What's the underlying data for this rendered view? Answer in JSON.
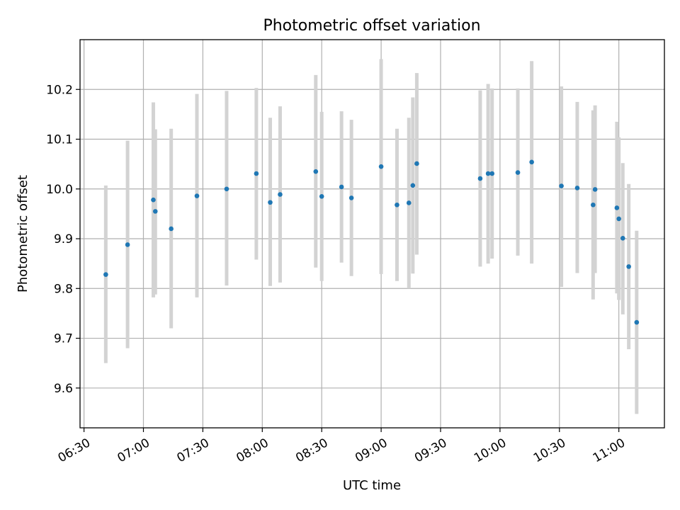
{
  "chart_data": {
    "type": "scatter",
    "title": "Photometric offset variation",
    "xlabel": "UTC time",
    "ylabel": "Photometric offset",
    "x_axis_kind": "time",
    "xlim": [
      "06:28",
      "11:23"
    ],
    "ylim": [
      9.52,
      10.3
    ],
    "grid": true,
    "x_ticks": [
      "06:30",
      "07:00",
      "07:30",
      "08:00",
      "08:30",
      "09:00",
      "09:30",
      "10:00",
      "10:30",
      "11:00"
    ],
    "y_ticks": [
      "9.6",
      "9.7",
      "9.8",
      "9.9",
      "10.0",
      "10.1",
      "10.2"
    ],
    "marker_color": "#1f77b4",
    "errorbar_color": "#d3d3d3",
    "points": [
      {
        "x": "06:41",
        "y": 9.828,
        "lo": 9.65,
        "hi": 10.007
      },
      {
        "x": "06:52",
        "y": 9.888,
        "lo": 9.68,
        "hi": 10.097
      },
      {
        "x": "07:05",
        "y": 9.978,
        "lo": 9.782,
        "hi": 10.174
      },
      {
        "x": "07:06",
        "y": 9.955,
        "lo": 9.788,
        "hi": 10.12
      },
      {
        "x": "07:14",
        "y": 9.92,
        "lo": 9.72,
        "hi": 10.121
      },
      {
        "x": "07:27",
        "y": 9.986,
        "lo": 9.782,
        "hi": 10.191
      },
      {
        "x": "07:42",
        "y": 10.0,
        "lo": 9.806,
        "hi": 10.197
      },
      {
        "x": "07:57",
        "y": 10.031,
        "lo": 9.858,
        "hi": 10.203
      },
      {
        "x": "08:04",
        "y": 9.973,
        "lo": 9.805,
        "hi": 10.143
      },
      {
        "x": "08:09",
        "y": 9.989,
        "lo": 9.812,
        "hi": 10.166
      },
      {
        "x": "08:27",
        "y": 10.035,
        "lo": 9.842,
        "hi": 10.229
      },
      {
        "x": "08:30",
        "y": 9.985,
        "lo": 9.815,
        "hi": 10.155
      },
      {
        "x": "08:40",
        "y": 10.004,
        "lo": 9.852,
        "hi": 10.156
      },
      {
        "x": "08:45",
        "y": 9.982,
        "lo": 9.825,
        "hi": 10.139
      },
      {
        "x": "09:00",
        "y": 10.045,
        "lo": 9.829,
        "hi": 10.261
      },
      {
        "x": "09:08",
        "y": 9.968,
        "lo": 9.815,
        "hi": 10.121
      },
      {
        "x": "09:14",
        "y": 9.972,
        "lo": 9.8,
        "hi": 10.143
      },
      {
        "x": "09:16",
        "y": 10.007,
        "lo": 9.83,
        "hi": 10.184
      },
      {
        "x": "09:18",
        "y": 10.051,
        "lo": 9.868,
        "hi": 10.233
      },
      {
        "x": "09:50",
        "y": 10.021,
        "lo": 9.844,
        "hi": 10.198
      },
      {
        "x": "09:54",
        "y": 10.031,
        "lo": 9.85,
        "hi": 10.211
      },
      {
        "x": "09:56",
        "y": 10.031,
        "lo": 9.86,
        "hi": 10.202
      },
      {
        "x": "10:09",
        "y": 10.033,
        "lo": 9.866,
        "hi": 10.202
      },
      {
        "x": "10:16",
        "y": 10.054,
        "lo": 9.85,
        "hi": 10.257
      },
      {
        "x": "10:31",
        "y": 10.006,
        "lo": 9.803,
        "hi": 10.206
      },
      {
        "x": "10:39",
        "y": 10.002,
        "lo": 9.831,
        "hi": 10.175
      },
      {
        "x": "10:47",
        "y": 9.968,
        "lo": 9.778,
        "hi": 10.158
      },
      {
        "x": "10:48",
        "y": 9.999,
        "lo": 9.831,
        "hi": 10.168
      },
      {
        "x": "10:59",
        "y": 9.962,
        "lo": 9.79,
        "hi": 10.135
      },
      {
        "x": "11:00",
        "y": 9.94,
        "lo": 9.777,
        "hi": 10.104
      },
      {
        "x": "11:02",
        "y": 9.901,
        "lo": 9.748,
        "hi": 10.052
      },
      {
        "x": "11:05",
        "y": 9.844,
        "lo": 9.678,
        "hi": 10.01
      },
      {
        "x": "11:09",
        "y": 9.732,
        "lo": 9.548,
        "hi": 9.916
      }
    ]
  }
}
